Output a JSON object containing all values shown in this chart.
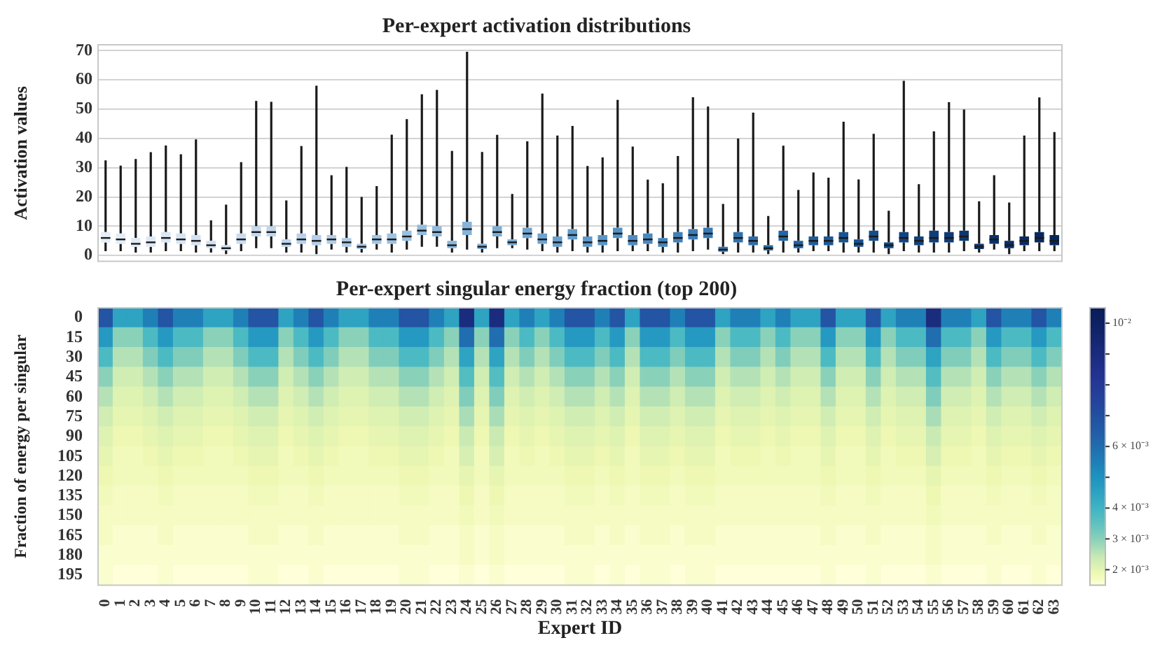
{
  "chart_data": [
    {
      "type": "box",
      "title": "Per-expert activation distributions",
      "ylabel": "Activation values",
      "categories": [
        "0",
        "1",
        "2",
        "3",
        "4",
        "5",
        "6",
        "7",
        "8",
        "9",
        "10",
        "11",
        "12",
        "13",
        "14",
        "15",
        "16",
        "17",
        "18",
        "19",
        "20",
        "21",
        "22",
        "23",
        "24",
        "25",
        "26",
        "27",
        "28",
        "29",
        "30",
        "31",
        "32",
        "33",
        "34",
        "35",
        "36",
        "37",
        "38",
        "39",
        "40",
        "41",
        "42",
        "43",
        "44",
        "45",
        "46",
        "47",
        "48",
        "49",
        "50",
        "51",
        "52",
        "53",
        "54",
        "55",
        "56",
        "57",
        "58",
        "59",
        "60",
        "61",
        "62",
        "63"
      ],
      "boxes": [
        {
          "low": 1.5,
          "q1": 4.5,
          "median": 6,
          "q3": 8,
          "high": 32.5
        },
        {
          "low": 1.5,
          "q1": 4,
          "median": 5.5,
          "q3": 7.5,
          "high": 30.7
        },
        {
          "low": 1,
          "q1": 3,
          "median": 4,
          "q3": 6,
          "high": 33
        },
        {
          "low": 1,
          "q1": 3,
          "median": 4.5,
          "q3": 6.5,
          "high": 35.3
        },
        {
          "low": 1.5,
          "q1": 4.5,
          "median": 6,
          "q3": 8,
          "high": 37.6
        },
        {
          "low": 1.5,
          "q1": 4,
          "median": 5.5,
          "q3": 7.5,
          "high": 34.6
        },
        {
          "low": 1,
          "q1": 3.5,
          "median": 5,
          "q3": 7,
          "high": 39.7
        },
        {
          "low": 1,
          "q1": 2.5,
          "median": 3.5,
          "q3": 5,
          "high": 12
        },
        {
          "low": 0.5,
          "q1": 1.7,
          "median": 2.5,
          "q3": 3.5,
          "high": 17.4
        },
        {
          "low": 1.5,
          "q1": 4,
          "median": 5.5,
          "q3": 7.5,
          "high": 31.9
        },
        {
          "low": 2.5,
          "q1": 6.5,
          "median": 8,
          "q3": 10,
          "high": 52.8
        },
        {
          "low": 2.5,
          "q1": 6.5,
          "median": 8,
          "q3": 10,
          "high": 52.5
        },
        {
          "low": 1,
          "q1": 3,
          "median": 4,
          "q3": 5.5,
          "high": 18.8
        },
        {
          "low": 1,
          "q1": 4,
          "median": 5.5,
          "q3": 7.5,
          "high": 37.4
        },
        {
          "low": 0.5,
          "q1": 3.5,
          "median": 5,
          "q3": 7,
          "high": 58
        },
        {
          "low": 2,
          "q1": 4,
          "median": 5.5,
          "q3": 7,
          "high": 27.4
        },
        {
          "low": 1,
          "q1": 3,
          "median": 4.5,
          "q3": 6,
          "high": 30.3
        },
        {
          "low": 1,
          "q1": 2.2,
          "median": 3,
          "q3": 4,
          "high": 20
        },
        {
          "low": 2,
          "q1": 4,
          "median": 5.5,
          "q3": 7,
          "high": 23.7
        },
        {
          "low": 1,
          "q1": 4,
          "median": 5.5,
          "q3": 7.5,
          "high": 41.3
        },
        {
          "low": 2,
          "q1": 5,
          "median": 6.5,
          "q3": 8.5,
          "high": 46.6
        },
        {
          "low": 3,
          "q1": 7,
          "median": 8.5,
          "q3": 10.5,
          "high": 55.1
        },
        {
          "low": 3,
          "q1": 6.5,
          "median": 8,
          "q3": 10,
          "high": 56.6
        },
        {
          "low": 1,
          "q1": 2.5,
          "median": 3.5,
          "q3": 5,
          "high": 35.7
        },
        {
          "low": 2,
          "q1": 7,
          "median": 9,
          "q3": 11.5,
          "high": 69.6
        },
        {
          "low": 1,
          "q1": 2.2,
          "median": 3,
          "q3": 4,
          "high": 35.4
        },
        {
          "low": 2.5,
          "q1": 6.5,
          "median": 8,
          "q3": 10,
          "high": 41.2
        },
        {
          "low": 2.5,
          "q1": 3.5,
          "median": 4.5,
          "q3": 5.5,
          "high": 21
        },
        {
          "low": 2,
          "q1": 6,
          "median": 7.5,
          "q3": 9.5,
          "high": 39
        },
        {
          "low": 1.5,
          "q1": 4,
          "median": 5.5,
          "q3": 7.5,
          "high": 55.3
        },
        {
          "low": 1,
          "q1": 3,
          "median": 4.5,
          "q3": 6.5,
          "high": 41
        },
        {
          "low": 1.5,
          "q1": 5.5,
          "median": 7,
          "q3": 9,
          "high": 44.3
        },
        {
          "low": 1,
          "q1": 3,
          "median": 4.5,
          "q3": 6.5,
          "high": 30.6
        },
        {
          "low": 1,
          "q1": 3.5,
          "median": 5,
          "q3": 7,
          "high": 33.5
        },
        {
          "low": 1.5,
          "q1": 6,
          "median": 7.5,
          "q3": 9.5,
          "high": 53.2
        },
        {
          "low": 1.5,
          "q1": 3.5,
          "median": 5,
          "q3": 7,
          "high": 37.2
        },
        {
          "low": 1.5,
          "q1": 4,
          "median": 5.5,
          "q3": 7.5,
          "high": 25.9
        },
        {
          "low": 1,
          "q1": 3,
          "median": 4.5,
          "q3": 6,
          "high": 24.7
        },
        {
          "low": 1,
          "q1": 4.5,
          "median": 6,
          "q3": 8,
          "high": 34
        },
        {
          "low": 1.5,
          "q1": 5.5,
          "median": 7,
          "q3": 9,
          "high": 54.1
        },
        {
          "low": 2,
          "q1": 6,
          "median": 7.5,
          "q3": 9.5,
          "high": 50.9
        },
        {
          "low": 0.5,
          "q1": 1.3,
          "median": 2,
          "q3": 3,
          "high": 17.6
        },
        {
          "low": 1,
          "q1": 4.5,
          "median": 6,
          "q3": 8,
          "high": 40
        },
        {
          "low": 1,
          "q1": 3.5,
          "median": 5,
          "q3": 6.5,
          "high": 48.8
        },
        {
          "low": 0.5,
          "q1": 1.7,
          "median": 2.5,
          "q3": 3.5,
          "high": 13.5
        },
        {
          "low": 1,
          "q1": 5,
          "median": 6.5,
          "q3": 8.5,
          "high": 37.5
        },
        {
          "low": 1,
          "q1": 2.5,
          "median": 3.5,
          "q3": 5,
          "high": 22.4
        },
        {
          "low": 1.5,
          "q1": 3.5,
          "median": 5,
          "q3": 6.5,
          "high": 28.4
        },
        {
          "low": 1.5,
          "q1": 3.5,
          "median": 5,
          "q3": 6.5,
          "high": 26.6
        },
        {
          "low": 1,
          "q1": 4.5,
          "median": 6,
          "q3": 8,
          "high": 45.7
        },
        {
          "low": 1,
          "q1": 3,
          "median": 4,
          "q3": 5.5,
          "high": 26
        },
        {
          "low": 1,
          "q1": 5,
          "median": 6.5,
          "q3": 8.5,
          "high": 41.6
        },
        {
          "low": 0.5,
          "q1": 2.5,
          "median": 3.5,
          "q3": 4.5,
          "high": 15.3
        },
        {
          "low": 1.5,
          "q1": 4.5,
          "median": 6,
          "q3": 8,
          "high": 59.7
        },
        {
          "low": 1,
          "q1": 3.5,
          "median": 5,
          "q3": 6.5,
          "high": 24.4
        },
        {
          "low": 1,
          "q1": 4.5,
          "median": 6,
          "q3": 8.5,
          "high": 42.4
        },
        {
          "low": 1,
          "q1": 4.5,
          "median": 6,
          "q3": 8,
          "high": 52.4
        },
        {
          "low": 1.5,
          "q1": 5,
          "median": 6.5,
          "q3": 8.5,
          "high": 49.9
        },
        {
          "low": 1,
          "q1": 2.2,
          "median": 3,
          "q3": 4,
          "high": 18.5
        },
        {
          "low": 2,
          "q1": 4,
          "median": 5.5,
          "q3": 7,
          "high": 27.4
        },
        {
          "low": 0.5,
          "q1": 2.5,
          "median": 3.5,
          "q3": 5,
          "high": 18.1
        },
        {
          "low": 1.5,
          "q1": 3.5,
          "median": 5,
          "q3": 6.5,
          "high": 41
        },
        {
          "low": 1.5,
          "q1": 4.5,
          "median": 6,
          "q3": 8,
          "high": 54
        },
        {
          "low": 1.5,
          "q1": 3.5,
          "median": 5,
          "q3": 7,
          "high": 42.2
        }
      ],
      "colors": [
        "#e6eff8",
        "#e3edf7",
        "#e0ebf6",
        "#dde9f5",
        "#dae7f4",
        "#d7e5f3",
        "#d4e3f2",
        "#d1e1f1",
        "#cddff0",
        "#c9dcef",
        "#c5d9ed",
        "#c1d7ec",
        "#bdd4eb",
        "#b9d1e9",
        "#b5cfe8",
        "#b1cce6",
        "#adc9e5",
        "#a8c7e4",
        "#a3c4e2",
        "#9ec2e1",
        "#99bfe0",
        "#94bcde",
        "#8fb9dd",
        "#8ab6db",
        "#85b3da",
        "#80b0d8",
        "#7badd6",
        "#76a9d4",
        "#71a6d2",
        "#6ca3d0",
        "#67a0ce",
        "#629ccc",
        "#5d99ca",
        "#5895c8",
        "#5391c5",
        "#4e8dc2",
        "#4989bf",
        "#4485bc",
        "#4081b9",
        "#3c7db6",
        "#3879b3",
        "#3475b0",
        "#3071ad",
        "#2c6daa",
        "#2869a6",
        "#2465a2",
        "#21619e",
        "#1e5d9a",
        "#1b5996",
        "#185592",
        "#16518e",
        "#144d8a",
        "#124986",
        "#104582",
        "#0f427e",
        "#0e3e7a",
        "#0d3b76",
        "#0c3872",
        "#0b356e",
        "#0a326a",
        "#092f66",
        "#092c62",
        "#08295e",
        "#08275a"
      ],
      "ylim": [
        -2,
        72
      ],
      "yticks": [
        0,
        10,
        20,
        30,
        40,
        50,
        60,
        70
      ],
      "grid": "y",
      "tick_labels": "y"
    },
    {
      "type": "heatmap",
      "title": "Per-expert singular energy fraction (top 200)",
      "xlabel": "Expert ID",
      "ylabel": "Fraction of energy per singular",
      "categories": [
        "0",
        "1",
        "2",
        "3",
        "4",
        "5",
        "6",
        "7",
        "8",
        "9",
        "10",
        "11",
        "12",
        "13",
        "14",
        "15",
        "16",
        "17",
        "18",
        "19",
        "20",
        "21",
        "22",
        "23",
        "24",
        "25",
        "26",
        "27",
        "28",
        "29",
        "30",
        "31",
        "32",
        "33",
        "34",
        "35",
        "36",
        "37",
        "38",
        "39",
        "40",
        "41",
        "42",
        "43",
        "44",
        "45",
        "46",
        "47",
        "48",
        "49",
        "50",
        "51",
        "52",
        "53",
        "54",
        "55",
        "56",
        "57",
        "58",
        "59",
        "60",
        "61",
        "62",
        "63"
      ],
      "y_categories": [
        "0",
        "15",
        "30",
        "45",
        "60",
        "75",
        "90",
        "105",
        "120",
        "135",
        "150",
        "165",
        "180",
        "195"
      ],
      "cells": [
        [
          0.0068,
          0.0045,
          0.0045,
          0.0055,
          0.0068,
          0.0055,
          0.0055,
          0.0045,
          0.0045,
          0.0055,
          0.0068,
          0.0068,
          0.0045,
          0.0055,
          0.0068,
          0.0055,
          0.0045,
          0.0045,
          0.0055,
          0.0055,
          0.0068,
          0.0068,
          0.0055,
          0.0045,
          0.009,
          0.0045,
          0.009,
          0.0045,
          0.0055,
          0.0045,
          0.0055,
          0.0068,
          0.0068,
          0.0055,
          0.0068,
          0.0045,
          0.0068,
          0.0068,
          0.0055,
          0.0068,
          0.0068,
          0.0045,
          0.0055,
          0.0055,
          0.0045,
          0.0055,
          0.0045,
          0.0045,
          0.0068,
          0.0045,
          0.0045,
          0.0068,
          0.0045,
          0.0055,
          0.0055,
          0.009,
          0.0055,
          0.0055,
          0.0045,
          0.0068,
          0.0055,
          0.0055,
          0.0068,
          0.0055
        ],
        [
          0.0048,
          0.003,
          0.003,
          0.0038,
          0.0048,
          0.0038,
          0.0038,
          0.003,
          0.003,
          0.0038,
          0.0048,
          0.0048,
          0.003,
          0.0038,
          0.0048,
          0.0038,
          0.003,
          0.003,
          0.0038,
          0.0038,
          0.0048,
          0.0048,
          0.0038,
          0.003,
          0.006,
          0.003,
          0.006,
          0.003,
          0.0038,
          0.003,
          0.0038,
          0.0048,
          0.0048,
          0.0038,
          0.0048,
          0.003,
          0.0048,
          0.0048,
          0.0038,
          0.0048,
          0.0048,
          0.003,
          0.0038,
          0.0038,
          0.003,
          0.0038,
          0.003,
          0.003,
          0.0048,
          0.003,
          0.003,
          0.0048,
          0.003,
          0.0038,
          0.0038,
          0.006,
          0.0038,
          0.0038,
          0.003,
          0.0048,
          0.0038,
          0.0038,
          0.0048,
          0.0038
        ],
        [
          0.0038,
          0.0026,
          0.0026,
          0.0031,
          0.0038,
          0.0031,
          0.0031,
          0.0026,
          0.0026,
          0.0031,
          0.0038,
          0.0038,
          0.0026,
          0.0031,
          0.0038,
          0.0031,
          0.0026,
          0.0026,
          0.0031,
          0.0031,
          0.0038,
          0.0038,
          0.0031,
          0.0026,
          0.0045,
          0.0026,
          0.0045,
          0.0026,
          0.0031,
          0.0026,
          0.0031,
          0.0038,
          0.0038,
          0.0031,
          0.0038,
          0.0026,
          0.0038,
          0.0038,
          0.0031,
          0.0038,
          0.0038,
          0.0026,
          0.0031,
          0.0031,
          0.0026,
          0.0031,
          0.0026,
          0.0026,
          0.0038,
          0.0026,
          0.0026,
          0.0038,
          0.0026,
          0.0031,
          0.0031,
          0.0045,
          0.0031,
          0.0031,
          0.0026,
          0.0038,
          0.0031,
          0.0031,
          0.0038,
          0.0031
        ],
        [
          0.003,
          0.0023,
          0.0023,
          0.0026,
          0.003,
          0.0026,
          0.0026,
          0.0023,
          0.0023,
          0.0026,
          0.003,
          0.003,
          0.0023,
          0.0026,
          0.003,
          0.0026,
          0.0023,
          0.0023,
          0.0026,
          0.0026,
          0.003,
          0.003,
          0.0026,
          0.0023,
          0.0037,
          0.0023,
          0.0037,
          0.0023,
          0.0026,
          0.0023,
          0.0026,
          0.003,
          0.003,
          0.0026,
          0.003,
          0.0023,
          0.003,
          0.003,
          0.0026,
          0.003,
          0.003,
          0.0023,
          0.0026,
          0.0026,
          0.0023,
          0.0026,
          0.0023,
          0.0023,
          0.003,
          0.0023,
          0.0023,
          0.003,
          0.0023,
          0.0026,
          0.0026,
          0.0037,
          0.0026,
          0.0026,
          0.0023,
          0.003,
          0.0026,
          0.0026,
          0.003,
          0.0026
        ],
        [
          0.0026,
          0.0021,
          0.0021,
          0.0023,
          0.0026,
          0.0023,
          0.0023,
          0.0021,
          0.0021,
          0.0023,
          0.0026,
          0.0026,
          0.0021,
          0.0023,
          0.0026,
          0.0023,
          0.0021,
          0.0021,
          0.0023,
          0.0023,
          0.0026,
          0.0026,
          0.0023,
          0.0021,
          0.0031,
          0.0021,
          0.0031,
          0.0021,
          0.0023,
          0.0021,
          0.0023,
          0.0026,
          0.0026,
          0.0023,
          0.0026,
          0.0021,
          0.0026,
          0.0026,
          0.0023,
          0.0026,
          0.0026,
          0.0021,
          0.0023,
          0.0023,
          0.0021,
          0.0023,
          0.0021,
          0.0021,
          0.0026,
          0.0021,
          0.0021,
          0.0026,
          0.0021,
          0.0023,
          0.0023,
          0.0031,
          0.0023,
          0.0023,
          0.0021,
          0.0026,
          0.0023,
          0.0023,
          0.0026,
          0.0023
        ],
        [
          0.0023,
          0.002,
          0.002,
          0.0021,
          0.0023,
          0.0021,
          0.0021,
          0.002,
          0.002,
          0.0021,
          0.0023,
          0.0023,
          0.002,
          0.0021,
          0.0023,
          0.0021,
          0.002,
          0.002,
          0.0021,
          0.0021,
          0.0023,
          0.0023,
          0.0021,
          0.002,
          0.0027,
          0.002,
          0.0027,
          0.002,
          0.0021,
          0.002,
          0.0021,
          0.0023,
          0.0023,
          0.0021,
          0.0023,
          0.002,
          0.0023,
          0.0023,
          0.0021,
          0.0023,
          0.0023,
          0.002,
          0.0021,
          0.0021,
          0.002,
          0.0021,
          0.002,
          0.002,
          0.0023,
          0.002,
          0.002,
          0.0023,
          0.002,
          0.0021,
          0.0021,
          0.0027,
          0.0021,
          0.0021,
          0.002,
          0.0023,
          0.0021,
          0.0021,
          0.0023,
          0.0021
        ],
        [
          0.0021,
          0.0019,
          0.0019,
          0.002,
          0.0021,
          0.002,
          0.002,
          0.0019,
          0.0019,
          0.002,
          0.0021,
          0.0021,
          0.0019,
          0.002,
          0.0021,
          0.002,
          0.0019,
          0.0019,
          0.002,
          0.002,
          0.0021,
          0.0021,
          0.002,
          0.0019,
          0.0024,
          0.0019,
          0.0024,
          0.0019,
          0.002,
          0.0019,
          0.002,
          0.0021,
          0.0021,
          0.002,
          0.0021,
          0.0019,
          0.0021,
          0.0021,
          0.002,
          0.0021,
          0.0021,
          0.0019,
          0.002,
          0.002,
          0.0019,
          0.002,
          0.0019,
          0.0019,
          0.0021,
          0.0019,
          0.0019,
          0.0021,
          0.0019,
          0.002,
          0.002,
          0.0024,
          0.002,
          0.002,
          0.0019,
          0.0021,
          0.002,
          0.002,
          0.0021,
          0.002
        ],
        [
          0.002,
          0.0018,
          0.0018,
          0.0019,
          0.002,
          0.0019,
          0.0019,
          0.0018,
          0.0018,
          0.0019,
          0.002,
          0.002,
          0.0018,
          0.0019,
          0.002,
          0.0019,
          0.0018,
          0.0018,
          0.0019,
          0.0019,
          0.002,
          0.002,
          0.0019,
          0.0018,
          0.0022,
          0.0018,
          0.0022,
          0.0018,
          0.0019,
          0.0018,
          0.0019,
          0.002,
          0.002,
          0.0019,
          0.002,
          0.0018,
          0.002,
          0.002,
          0.0019,
          0.002,
          0.002,
          0.0018,
          0.0019,
          0.0019,
          0.0018,
          0.0019,
          0.0018,
          0.0018,
          0.002,
          0.0018,
          0.0018,
          0.002,
          0.0018,
          0.0019,
          0.0019,
          0.0022,
          0.0019,
          0.0019,
          0.0018,
          0.002,
          0.0019,
          0.0019,
          0.002,
          0.0019
        ],
        [
          0.0019,
          0.0018,
          0.0018,
          0.0018,
          0.0019,
          0.0018,
          0.0018,
          0.0018,
          0.0018,
          0.0018,
          0.0019,
          0.0019,
          0.0018,
          0.0018,
          0.0019,
          0.0018,
          0.0018,
          0.0018,
          0.0018,
          0.0018,
          0.0019,
          0.0019,
          0.0018,
          0.0018,
          0.002,
          0.0018,
          0.002,
          0.0018,
          0.0018,
          0.0018,
          0.0018,
          0.0019,
          0.0019,
          0.0018,
          0.0019,
          0.0018,
          0.0019,
          0.0019,
          0.0018,
          0.0019,
          0.0019,
          0.0018,
          0.0018,
          0.0018,
          0.0018,
          0.0018,
          0.0018,
          0.0018,
          0.0019,
          0.0018,
          0.0018,
          0.0019,
          0.0018,
          0.0018,
          0.0018,
          0.002,
          0.0018,
          0.0018,
          0.0018,
          0.0019,
          0.0018,
          0.0018,
          0.0019,
          0.0018
        ],
        [
          0.0018,
          0.0017,
          0.0017,
          0.0017,
          0.0018,
          0.0017,
          0.0017,
          0.0017,
          0.0017,
          0.0017,
          0.0018,
          0.0018,
          0.0017,
          0.0017,
          0.0018,
          0.0017,
          0.0017,
          0.0017,
          0.0017,
          0.0017,
          0.0018,
          0.0018,
          0.0017,
          0.0017,
          0.0019,
          0.0017,
          0.0019,
          0.0017,
          0.0017,
          0.0017,
          0.0017,
          0.0018,
          0.0018,
          0.0017,
          0.0018,
          0.0017,
          0.0018,
          0.0018,
          0.0017,
          0.0018,
          0.0018,
          0.0017,
          0.0017,
          0.0017,
          0.0017,
          0.0017,
          0.0017,
          0.0017,
          0.0018,
          0.0017,
          0.0017,
          0.0018,
          0.0017,
          0.0017,
          0.0017,
          0.0019,
          0.0017,
          0.0017,
          0.0017,
          0.0018,
          0.0017,
          0.0017,
          0.0018,
          0.0017
        ],
        [
          0.0017,
          0.0017,
          0.0017,
          0.0017,
          0.0017,
          0.0017,
          0.0017,
          0.0017,
          0.0017,
          0.0017,
          0.0017,
          0.0017,
          0.0017,
          0.0017,
          0.0017,
          0.0017,
          0.0017,
          0.0017,
          0.0017,
          0.0017,
          0.0017,
          0.0017,
          0.0017,
          0.0017,
          0.0018,
          0.0017,
          0.0018,
          0.0017,
          0.0017,
          0.0017,
          0.0017,
          0.0017,
          0.0017,
          0.0017,
          0.0017,
          0.0017,
          0.0017,
          0.0017,
          0.0017,
          0.0017,
          0.0017,
          0.0017,
          0.0017,
          0.0017,
          0.0017,
          0.0017,
          0.0017,
          0.0017,
          0.0017,
          0.0017,
          0.0017,
          0.0017,
          0.0017,
          0.0017,
          0.0017,
          0.0018,
          0.0017,
          0.0017,
          0.0017,
          0.0017,
          0.0017,
          0.0017,
          0.0017,
          0.0017
        ],
        [
          0.0017,
          0.0016,
          0.0016,
          0.0016,
          0.0017,
          0.0016,
          0.0016,
          0.0016,
          0.0016,
          0.0016,
          0.0017,
          0.0017,
          0.0016,
          0.0016,
          0.0017,
          0.0016,
          0.0016,
          0.0016,
          0.0016,
          0.0016,
          0.0017,
          0.0017,
          0.0016,
          0.0016,
          0.0017,
          0.0016,
          0.0017,
          0.0016,
          0.0016,
          0.0016,
          0.0016,
          0.0017,
          0.0017,
          0.0016,
          0.0017,
          0.0016,
          0.0017,
          0.0017,
          0.0016,
          0.0017,
          0.0017,
          0.0016,
          0.0016,
          0.0016,
          0.0016,
          0.0016,
          0.0016,
          0.0016,
          0.0017,
          0.0016,
          0.0016,
          0.0017,
          0.0016,
          0.0016,
          0.0016,
          0.0017,
          0.0016,
          0.0016,
          0.0016,
          0.0017,
          0.0016,
          0.0016,
          0.0017,
          0.0016
        ],
        [
          0.0016,
          0.0016,
          0.0016,
          0.0016,
          0.0016,
          0.0016,
          0.0016,
          0.0016,
          0.0016,
          0.0016,
          0.0016,
          0.0016,
          0.0016,
          0.0016,
          0.0016,
          0.0016,
          0.0016,
          0.0016,
          0.0016,
          0.0016,
          0.0016,
          0.0016,
          0.0016,
          0.0016,
          0.0017,
          0.0016,
          0.0017,
          0.0016,
          0.0016,
          0.0016,
          0.0016,
          0.0016,
          0.0016,
          0.0016,
          0.0016,
          0.0016,
          0.0016,
          0.0016,
          0.0016,
          0.0016,
          0.0016,
          0.0016,
          0.0016,
          0.0016,
          0.0016,
          0.0016,
          0.0016,
          0.0016,
          0.0016,
          0.0016,
          0.0016,
          0.0016,
          0.0016,
          0.0016,
          0.0016,
          0.0017,
          0.0016,
          0.0016,
          0.0016,
          0.0016,
          0.0016,
          0.0016,
          0.0016,
          0.0016
        ],
        [
          0.0016,
          0.0015,
          0.0015,
          0.0015,
          0.0016,
          0.0015,
          0.0015,
          0.0015,
          0.0015,
          0.0015,
          0.0016,
          0.0016,
          0.0015,
          0.0015,
          0.0016,
          0.0015,
          0.0015,
          0.0015,
          0.0015,
          0.0015,
          0.0016,
          0.0016,
          0.0015,
          0.0015,
          0.0016,
          0.0015,
          0.0016,
          0.0015,
          0.0015,
          0.0015,
          0.0015,
          0.0016,
          0.0016,
          0.0015,
          0.0016,
          0.0015,
          0.0016,
          0.0016,
          0.0015,
          0.0016,
          0.0016,
          0.0015,
          0.0015,
          0.0015,
          0.0015,
          0.0015,
          0.0015,
          0.0015,
          0.0016,
          0.0015,
          0.0015,
          0.0016,
          0.0015,
          0.0015,
          0.0015,
          0.0016,
          0.0015,
          0.0015,
          0.0015,
          0.0016,
          0.0015,
          0.0015,
          0.0016,
          0.0015
        ]
      ],
      "clim": [
        0.0015,
        0.0105
      ],
      "cticks": [
        {
          "value": 0.01,
          "label": "10⁻²"
        },
        {
          "value": 0.009,
          "label": null
        },
        {
          "value": 0.008,
          "label": null
        },
        {
          "value": 0.007,
          "label": null
        },
        {
          "value": 0.006,
          "label": "6 × 10⁻³"
        },
        {
          "value": 0.005,
          "label": null
        },
        {
          "value": 0.004,
          "label": "4 × 10⁻³"
        },
        {
          "value": 0.003,
          "label": "3 × 10⁻³"
        },
        {
          "value": 0.002,
          "label": "2 × 10⁻³"
        }
      ]
    }
  ]
}
